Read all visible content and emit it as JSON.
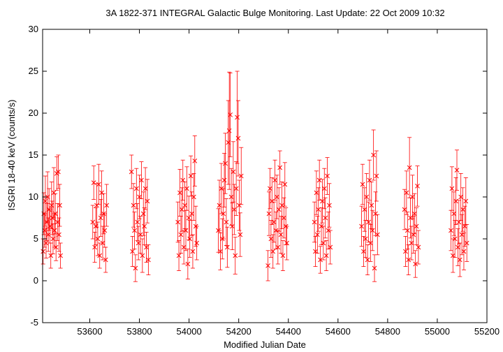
{
  "chart_data": {
    "type": "scatter",
    "title": "3A 1822-371    INTEGRAL Galactic Bulge Monitoring.  Last Update: 22 Oct 2009 10:32",
    "xlabel": "Modified Julian Date",
    "ylabel": "ISGRI 18-40 keV (counts/s)",
    "xlim": [
      53410,
      55200
    ],
    "ylim": [
      -5,
      30
    ],
    "x_ticks": [
      53600,
      53800,
      54000,
      54200,
      54400,
      54600,
      54800,
      55000,
      55200
    ],
    "y_ticks": [
      -5,
      0,
      5,
      10,
      15,
      20,
      25,
      30
    ],
    "grid": false,
    "legend": "none",
    "color": "#ff0000",
    "series": [
      {
        "marker": "x",
        "error_bars": true,
        "points": [
          [
            53412,
            3.5,
            1.5
          ],
          [
            53415,
            8.0,
            2.5
          ],
          [
            53418,
            6.0,
            2.0
          ],
          [
            53421,
            9.5,
            3.0
          ],
          [
            53424,
            4.5,
            1.8
          ],
          [
            53427,
            7.0,
            2.2
          ],
          [
            53430,
            10.0,
            3.0
          ],
          [
            53433,
            5.5,
            2.0
          ],
          [
            53436,
            8.5,
            2.5
          ],
          [
            53440,
            6.5,
            2.0
          ],
          [
            53443,
            3.0,
            1.5
          ],
          [
            53446,
            9.0,
            2.8
          ],
          [
            53449,
            7.5,
            2.0
          ],
          [
            53452,
            5.0,
            1.8
          ],
          [
            53455,
            10.5,
            3.0
          ],
          [
            53458,
            6.0,
            2.0
          ],
          [
            53461,
            8.0,
            2.4
          ],
          [
            53464,
            4.0,
            1.6
          ],
          [
            53467,
            12.8,
            2.0
          ],
          [
            53470,
            7.0,
            2.2
          ],
          [
            53473,
            13.0,
            2.0
          ],
          [
            53476,
            5.5,
            2.0
          ],
          [
            53479,
            9.0,
            2.5
          ],
          [
            53482,
            3.0,
            1.5
          ],
          [
            53612,
            7.0,
            2.0
          ],
          [
            53616,
            11.7,
            2.0
          ],
          [
            53620,
            4.0,
            1.8
          ],
          [
            53624,
            6.5,
            2.2
          ],
          [
            53628,
            9.0,
            2.6
          ],
          [
            53632,
            5.0,
            2.0
          ],
          [
            53636,
            11.5,
            2.4
          ],
          [
            53640,
            3.0,
            1.5
          ],
          [
            53644,
            7.5,
            2.2
          ],
          [
            53648,
            10.5,
            2.6
          ],
          [
            53652,
            4.5,
            2.0
          ],
          [
            53656,
            8.0,
            2.4
          ],
          [
            53660,
            6.0,
            2.0
          ],
          [
            53664,
            2.5,
            1.5
          ],
          [
            53668,
            9.0,
            2.5
          ],
          [
            53768,
            13.0,
            2.0
          ],
          [
            53772,
            3.5,
            1.8
          ],
          [
            53776,
            9.0,
            2.6
          ],
          [
            53780,
            6.0,
            2.2
          ],
          [
            53784,
            1.5,
            1.6
          ],
          [
            53788,
            11.0,
            2.4
          ],
          [
            53792,
            7.0,
            2.2
          ],
          [
            53796,
            4.5,
            2.0
          ],
          [
            53800,
            10.0,
            2.6
          ],
          [
            53804,
            5.5,
            2.2
          ],
          [
            53808,
            12.0,
            2.2
          ],
          [
            53812,
            3.0,
            2.0
          ],
          [
            53816,
            8.0,
            2.6
          ],
          [
            53820,
            6.5,
            2.2
          ],
          [
            53824,
            11.0,
            2.5
          ],
          [
            53828,
            4.0,
            1.8
          ],
          [
            53832,
            9.5,
            2.6
          ],
          [
            53836,
            2.5,
            1.8
          ],
          [
            53955,
            7.0,
            2.4
          ],
          [
            53959,
            3.0,
            1.8
          ],
          [
            53963,
            10.5,
            2.8
          ],
          [
            53967,
            5.5,
            2.2
          ],
          [
            53971,
            8.5,
            2.6
          ],
          [
            53975,
            12.0,
            2.4
          ],
          [
            53979,
            4.0,
            2.0
          ],
          [
            53983,
            9.0,
            2.8
          ],
          [
            53987,
            6.0,
            2.4
          ],
          [
            53991,
            11.0,
            2.6
          ],
          [
            53995,
            2.0,
            1.8
          ],
          [
            53999,
            7.5,
            2.6
          ],
          [
            54003,
            5.0,
            2.2
          ],
          [
            54007,
            12.5,
            2.4
          ],
          [
            54011,
            8.0,
            2.6
          ],
          [
            54015,
            3.5,
            2.0
          ],
          [
            54019,
            10.0,
            2.8
          ],
          [
            54023,
            14.3,
            3.0
          ],
          [
            54027,
            6.5,
            2.4
          ],
          [
            54031,
            4.5,
            2.0
          ],
          [
            54118,
            6.0,
            2.6
          ],
          [
            54122,
            9.0,
            3.0
          ],
          [
            54126,
            3.5,
            2.2
          ],
          [
            54130,
            11.0,
            3.0
          ],
          [
            54134,
            5.0,
            2.4
          ],
          [
            54138,
            8.0,
            3.0
          ],
          [
            54142,
            12.0,
            3.2
          ],
          [
            54146,
            14.0,
            3.6
          ],
          [
            54150,
            7.0,
            2.8
          ],
          [
            54154,
            4.0,
            2.4
          ],
          [
            54158,
            16.5,
            5.0
          ],
          [
            54162,
            17.9,
            7.0
          ],
          [
            54166,
            19.8,
            5.0
          ],
          [
            54170,
            10.0,
            3.4
          ],
          [
            54174,
            6.5,
            2.8
          ],
          [
            54178,
            13.0,
            3.6
          ],
          [
            54182,
            8.5,
            3.0
          ],
          [
            54186,
            3.0,
            2.2
          ],
          [
            54190,
            11.0,
            3.2
          ],
          [
            54194,
            19.5,
            5.5
          ],
          [
            54198,
            17.0,
            4.5
          ],
          [
            54202,
            9.0,
            3.0
          ],
          [
            54206,
            5.5,
            2.6
          ],
          [
            54210,
            12.5,
            3.4
          ],
          [
            54318,
            1.8,
            1.8
          ],
          [
            54322,
            8.0,
            2.6
          ],
          [
            54326,
            11.0,
            2.4
          ],
          [
            54330,
            5.0,
            2.2
          ],
          [
            54334,
            9.5,
            2.8
          ],
          [
            54338,
            3.5,
            2.0
          ],
          [
            54342,
            7.0,
            2.4
          ],
          [
            54346,
            12.0,
            2.4
          ],
          [
            54350,
            6.0,
            2.2
          ],
          [
            54354,
            10.0,
            2.6
          ],
          [
            54358,
            4.0,
            2.0
          ],
          [
            54362,
            8.5,
            2.6
          ],
          [
            54366,
            13.5,
            2.0
          ],
          [
            54370,
            5.5,
            2.2
          ],
          [
            54374,
            9.0,
            2.8
          ],
          [
            54378,
            3.0,
            1.8
          ],
          [
            54382,
            7.5,
            2.4
          ],
          [
            54386,
            11.5,
            2.6
          ],
          [
            54390,
            6.5,
            2.2
          ],
          [
            54394,
            4.5,
            2.0
          ],
          [
            54505,
            7.0,
            2.4
          ],
          [
            54509,
            3.5,
            1.8
          ],
          [
            54513,
            10.5,
            2.6
          ],
          [
            54517,
            5.5,
            2.2
          ],
          [
            54521,
            8.5,
            2.6
          ],
          [
            54525,
            12.0,
            2.4
          ],
          [
            54529,
            2.5,
            1.6
          ],
          [
            54533,
            6.5,
            2.2
          ],
          [
            54537,
            9.5,
            2.6
          ],
          [
            54541,
            4.5,
            2.0
          ],
          [
            54545,
            11.0,
            2.4
          ],
          [
            54549,
            7.5,
            2.4
          ],
          [
            54553,
            3.0,
            1.8
          ],
          [
            54557,
            12.5,
            2.2
          ],
          [
            54561,
            6.0,
            2.2
          ],
          [
            54565,
            9.0,
            2.6
          ],
          [
            54569,
            4.0,
            2.0
          ],
          [
            54695,
            6.5,
            2.4
          ],
          [
            54699,
            11.5,
            2.4
          ],
          [
            54703,
            3.5,
            1.8
          ],
          [
            54707,
            8.5,
            2.6
          ],
          [
            54711,
            5.0,
            2.2
          ],
          [
            54715,
            10.0,
            2.8
          ],
          [
            54719,
            2.5,
            1.8
          ],
          [
            54723,
            7.0,
            2.4
          ],
          [
            54727,
            12.0,
            2.4
          ],
          [
            54731,
            4.5,
            2.2
          ],
          [
            54735,
            9.0,
            2.8
          ],
          [
            54739,
            6.0,
            2.4
          ],
          [
            54743,
            15.0,
            3.0
          ],
          [
            54747,
            1.5,
            1.6
          ],
          [
            54751,
            8.0,
            2.6
          ],
          [
            54755,
            12.5,
            3.0
          ],
          [
            54759,
            5.5,
            2.4
          ],
          [
            54868,
            8.5,
            2.4
          ],
          [
            54872,
            3.5,
            1.8
          ],
          [
            54876,
            10.5,
            2.6
          ],
          [
            54880,
            6.0,
            2.2
          ],
          [
            54884,
            2.5,
            1.8
          ],
          [
            54888,
            13.5,
            3.6
          ],
          [
            54892,
            7.5,
            2.4
          ],
          [
            54896,
            4.5,
            2.0
          ],
          [
            54900,
            10.0,
            2.6
          ],
          [
            54904,
            5.5,
            2.2
          ],
          [
            54908,
            8.0,
            2.4
          ],
          [
            54912,
            2.0,
            1.6
          ],
          [
            54916,
            6.5,
            2.2
          ],
          [
            54920,
            11.3,
            2.4
          ],
          [
            54924,
            4.0,
            2.0
          ],
          [
            55055,
            6.0,
            2.4
          ],
          [
            55059,
            11.0,
            2.6
          ],
          [
            55063,
            3.0,
            2.0
          ],
          [
            55067,
            8.0,
            2.6
          ],
          [
            55071,
            5.0,
            2.2
          ],
          [
            55075,
            9.5,
            2.8
          ],
          [
            55079,
            13.2,
            2.4
          ],
          [
            55083,
            4.0,
            2.2
          ],
          [
            55087,
            7.0,
            2.6
          ],
          [
            55091,
            2.5,
            2.0
          ],
          [
            55095,
            10.0,
            2.8
          ],
          [
            55099,
            5.5,
            2.4
          ],
          [
            55103,
            8.5,
            2.6
          ],
          [
            55107,
            3.5,
            2.2
          ],
          [
            55111,
            6.5,
            2.4
          ],
          [
            55115,
            9.5,
            2.8
          ],
          [
            55119,
            4.5,
            2.2
          ]
        ]
      }
    ]
  }
}
